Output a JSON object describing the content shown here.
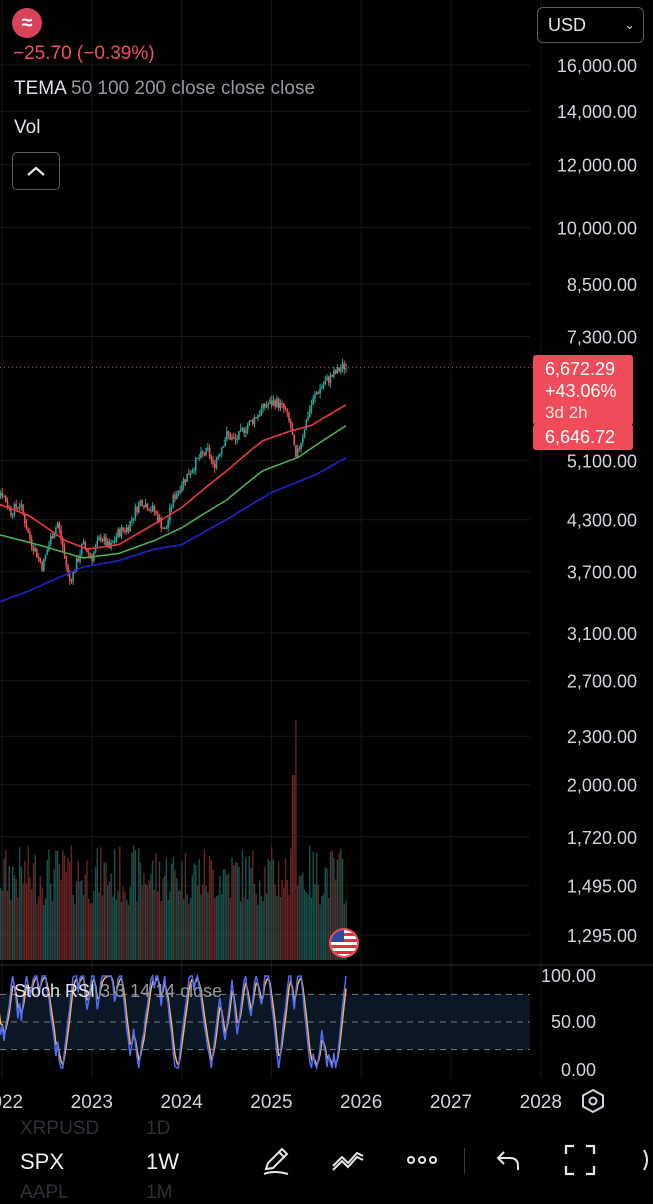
{
  "header": {
    "logo_icon": "tilde-logo-icon",
    "logo_glyph": "≈",
    "change_text": "−25.70 (−0.39%)",
    "currency": "USD"
  },
  "legend": {
    "tema_name": "TEMA",
    "tema_params": "50 100 200 close close close",
    "vol_name": "Vol",
    "stoch_name": "Stoch RSI",
    "stoch_params": "3 3 14 14 close"
  },
  "badges": {
    "price": "6,672.29",
    "change_pct": "+43.06%",
    "time_left": "3d 2h",
    "ema_value": "6,646.72"
  },
  "bottom_bar": {
    "symbol": "SPX",
    "interval": "1W",
    "ghost_symbol_1": "XRPUSD",
    "ghost_interval_1": "1D",
    "ghost_symbol_2": "AAPL",
    "ghost_interval_2": "1M"
  },
  "colors": {
    "up": "#26a69a",
    "down": "#ef5350",
    "tema_50": "#f23645",
    "tema_100": "#4caf50",
    "tema_200": "#2222cc",
    "stoch_k": "#4f6df5",
    "stoch_d": "#ffb74d"
  },
  "chart_data": {
    "type": "candlestick",
    "symbol": "SPX",
    "interval": "1W",
    "scale": "log",
    "price_axis_labels": [
      "16,000.00",
      "14,000.00",
      "12,000.00",
      "10,000.00",
      "8,500.00",
      "7,300.00",
      "5,100.00",
      "4,300.00",
      "3,700.00",
      "3,100.00",
      "2,700.00",
      "2,300.00",
      "2,000.00",
      "1,720.00",
      "1,495.00",
      "1,295.00"
    ],
    "price_axis_values": [
      16000,
      14000,
      12000,
      10000,
      8500,
      7300,
      5100,
      4300,
      3700,
      3100,
      2700,
      2300,
      2000,
      1720,
      1495,
      1295
    ],
    "x_axis_labels": [
      "2022",
      "2023",
      "2024",
      "2025",
      "2026",
      "2027",
      "2028"
    ],
    "x_axis_years": [
      2022,
      2023,
      2024,
      2025,
      2026,
      2027,
      2028
    ],
    "last_price": 6672.29,
    "price_keypoints": [
      [
        2021.85,
        4700
      ],
      [
        2022.0,
        4650
      ],
      [
        2022.1,
        4400
      ],
      [
        2022.2,
        4500
      ],
      [
        2022.3,
        4100
      ],
      [
        2022.45,
        3750
      ],
      [
        2022.55,
        4100
      ],
      [
        2022.62,
        4250
      ],
      [
        2022.75,
        3600
      ],
      [
        2022.8,
        3700
      ],
      [
        2022.9,
        4000
      ],
      [
        2023.0,
        3850
      ],
      [
        2023.1,
        4100
      ],
      [
        2023.2,
        3950
      ],
      [
        2023.3,
        4150
      ],
      [
        2023.4,
        4200
      ],
      [
        2023.5,
        4450
      ],
      [
        2023.55,
        4550
      ],
      [
        2023.7,
        4400
      ],
      [
        2023.82,
        4150
      ],
      [
        2023.9,
        4550
      ],
      [
        2024.0,
        4770
      ],
      [
        2024.2,
        5150
      ],
      [
        2024.3,
        5250
      ],
      [
        2024.35,
        5000
      ],
      [
        2024.5,
        5500
      ],
      [
        2024.6,
        5400
      ],
      [
        2024.7,
        5600
      ],
      [
        2024.8,
        5750
      ],
      [
        2024.95,
        6000
      ],
      [
        2025.05,
        6050
      ],
      [
        2025.15,
        5900
      ],
      [
        2025.22,
        5600
      ],
      [
        2025.27,
        5100
      ],
      [
        2025.33,
        5400
      ],
      [
        2025.42,
        5900
      ],
      [
        2025.5,
        6200
      ],
      [
        2025.6,
        6400
      ],
      [
        2025.7,
        6550
      ],
      [
        2025.8,
        6700
      ],
      [
        2025.84,
        6672
      ]
    ],
    "tema_50_keypoints": [
      [
        2021.85,
        4550
      ],
      [
        2022.3,
        4350
      ],
      [
        2022.7,
        4050
      ],
      [
        2022.95,
        3950
      ],
      [
        2023.3,
        4000
      ],
      [
        2023.7,
        4250
      ],
      [
        2024.0,
        4450
      ],
      [
        2024.5,
        4950
      ],
      [
        2024.9,
        5400
      ],
      [
        2025.2,
        5550
      ],
      [
        2025.45,
        5650
      ],
      [
        2025.84,
        6000
      ]
    ],
    "tema_100_keypoints": [
      [
        2021.85,
        4150
      ],
      [
        2022.4,
        4000
      ],
      [
        2022.9,
        3850
      ],
      [
        2023.3,
        3900
      ],
      [
        2023.7,
        4050
      ],
      [
        2024.0,
        4200
      ],
      [
        2024.5,
        4550
      ],
      [
        2024.9,
        4950
      ],
      [
        2025.3,
        5150
      ],
      [
        2025.84,
        5650
      ]
    ],
    "tema_200_keypoints": [
      [
        2021.85,
        3350
      ],
      [
        2022.3,
        3500
      ],
      [
        2022.9,
        3750
      ],
      [
        2023.3,
        3820
      ],
      [
        2023.7,
        3950
      ],
      [
        2024.0,
        4000
      ],
      [
        2024.5,
        4300
      ],
      [
        2025.0,
        4650
      ],
      [
        2025.5,
        4900
      ],
      [
        2025.84,
        5150
      ]
    ],
    "stoch_rsi": {
      "levels": [
        0,
        50,
        100
      ],
      "level_labels": [
        "100.00",
        "50.00",
        "0.00"
      ],
      "bands": [
        20,
        80
      ]
    }
  }
}
